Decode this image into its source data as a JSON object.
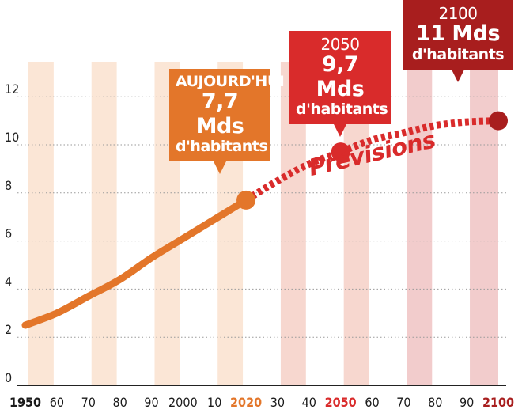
{
  "chart_data": {
    "type": "line",
    "title": "",
    "xlabel": "",
    "ylabel": "",
    "ylim": [
      0,
      13
    ],
    "y_ticks": [
      "0",
      "2",
      "4",
      "6",
      "8",
      "10",
      "12"
    ],
    "x_ticks": [
      "1950",
      "60",
      "70",
      "80",
      "90",
      "2000",
      "10",
      "2020",
      "30",
      "40",
      "2050",
      "60",
      "70",
      "80",
      "90",
      "2100"
    ],
    "x_tick_years": [
      1950,
      1960,
      1970,
      1980,
      1990,
      2000,
      2010,
      2020,
      2030,
      2040,
      2050,
      2060,
      2070,
      2080,
      2090,
      2100
    ],
    "x_tick_colors": [
      "#1a1a1a",
      "#1a1a1a",
      "#1a1a1a",
      "#1a1a1a",
      "#1a1a1a",
      "#1a1a1a",
      "#1a1a1a",
      "#e3762a",
      "#1a1a1a",
      "#1a1a1a",
      "#d92b2b",
      "#1a1a1a",
      "#1a1a1a",
      "#1a1a1a",
      "#1a1a1a",
      "#a81e1e"
    ],
    "x_tick_bold": [
      true,
      false,
      false,
      false,
      false,
      false,
      false,
      true,
      false,
      false,
      true,
      false,
      false,
      false,
      false,
      true
    ],
    "xlim": [
      1950,
      2100
    ],
    "series": [
      {
        "historical": true,
        "color": "#e3762a",
        "x": [
          1950,
          1960,
          1970,
          1980,
          1990,
          2000,
          2010,
          2020
        ],
        "y": [
          2.5,
          3.0,
          3.7,
          4.4,
          5.3,
          6.1,
          6.9,
          7.7
        ]
      },
      {
        "forecast": true,
        "color": "#d92b2b",
        "dashed": true,
        "x": [
          2020,
          2030,
          2040,
          2050,
          2060,
          2070,
          2080,
          2090,
          2100
        ],
        "y": [
          7.7,
          8.5,
          9.2,
          9.7,
          10.2,
          10.5,
          10.8,
          10.95,
          11.0
        ]
      }
    ],
    "highlight_points": [
      {
        "year": 2020,
        "value": 7.7,
        "color": "#e3762a"
      },
      {
        "year": 2050,
        "value": 9.7,
        "color": "#d92b2b"
      },
      {
        "year": 2100,
        "value": 11.0,
        "color": "#a81e1e"
      }
    ],
    "annotations": {
      "previsions": "Prévisions",
      "today": {
        "line1": "AUJOURD'HUI",
        "line2": "7,7 Mds",
        "line3": "d'habitants"
      },
      "y2050": {
        "line1": "2050",
        "line2": "9,7 Mds",
        "line3": "d'habitants"
      },
      "y2100": {
        "line1": "2100",
        "line2": "11 Mds",
        "line3": "d'habitants"
      }
    },
    "band_colors": {
      "orange": "#fbe6d6",
      "pink": "#f7d7cf",
      "red": "#f2cccc"
    },
    "grid": "dotted-horizontal"
  }
}
